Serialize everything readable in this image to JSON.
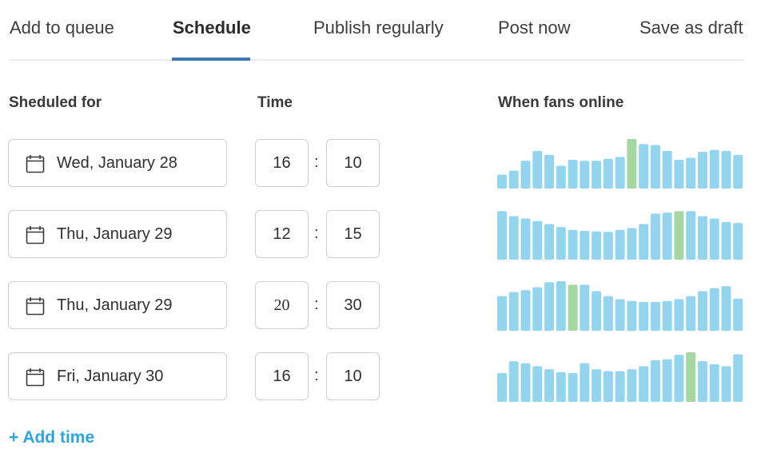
{
  "tabs": [
    {
      "label": "Add to queue",
      "active": false
    },
    {
      "label": "Schedule",
      "active": true
    },
    {
      "label": "Publish regularly",
      "active": false
    },
    {
      "label": "Post now",
      "active": false
    },
    {
      "label": "Save as draft",
      "active": false
    }
  ],
  "columns": {
    "scheduled_for": "Sheduled for",
    "time": "Time",
    "fans": "When fans online"
  },
  "colors": {
    "accent": "#3f78b5",
    "link": "#2ba6df",
    "bar": "#93d5ef",
    "bar_highlight": "#a4d8a0"
  },
  "rows": [
    {
      "icon": "calendar-icon",
      "date": "Wed, January 28",
      "hour": "16",
      "minute": "10",
      "fans": [
        0.28,
        0.36,
        0.56,
        0.76,
        0.68,
        0.46,
        0.58,
        0.56,
        0.56,
        0.6,
        0.64,
        1.0,
        0.9,
        0.88,
        0.76,
        0.58,
        0.62,
        0.74,
        0.78,
        0.76,
        0.68
      ]
    },
    {
      "icon": "calendar-icon",
      "date": "Thu, January 29",
      "hour": "12",
      "minute": "15",
      "fans": [
        0.98,
        0.88,
        0.83,
        0.78,
        0.72,
        0.66,
        0.6,
        0.58,
        0.57,
        0.56,
        0.6,
        0.64,
        0.72,
        0.93,
        0.95,
        0.98,
        0.98,
        0.88,
        0.83,
        0.76,
        0.74
      ]
    },
    {
      "icon": "calendar-icon",
      "date": "Thu, January 29",
      "hour": "20",
      "minute": "30",
      "fans": [
        0.7,
        0.78,
        0.82,
        0.88,
        0.98,
        1.0,
        0.93,
        0.93,
        0.8,
        0.7,
        0.64,
        0.6,
        0.58,
        0.58,
        0.6,
        0.64,
        0.7,
        0.8,
        0.86,
        0.9,
        0.65
      ]
    },
    {
      "icon": "calendar-icon",
      "date": "Fri, January 30",
      "hour": "16",
      "minute": "10",
      "fans": [
        0.58,
        0.82,
        0.78,
        0.72,
        0.66,
        0.6,
        0.58,
        0.78,
        0.66,
        0.62,
        0.62,
        0.66,
        0.72,
        0.84,
        0.86,
        0.95,
        1.0,
        0.82,
        0.76,
        0.72,
        0.96
      ]
    }
  ],
  "highlight_index": [
    11,
    15,
    6,
    16
  ],
  "add_time_label": "+ Add time"
}
